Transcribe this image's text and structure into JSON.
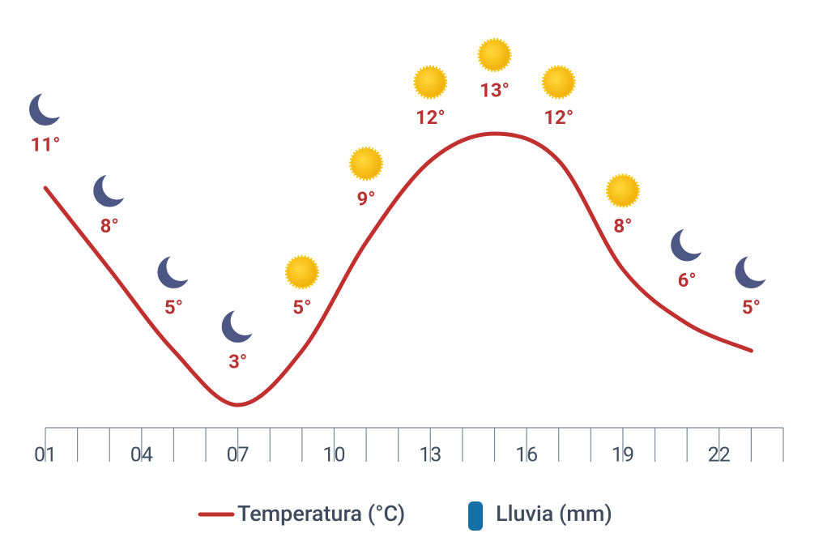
{
  "chart_data": {
    "type": "line",
    "x": [
      1,
      3,
      5,
      7,
      9,
      11,
      13,
      15,
      17,
      19,
      21,
      23
    ],
    "xlim": [
      1,
      24
    ],
    "xticks": [
      {
        "value": 1,
        "label": "01"
      },
      {
        "value": 4,
        "label": "04"
      },
      {
        "value": 7,
        "label": "07"
      },
      {
        "value": 10,
        "label": "10"
      },
      {
        "value": 13,
        "label": "13"
      },
      {
        "value": 16,
        "label": "16"
      },
      {
        "value": 19,
        "label": "19"
      },
      {
        "value": 22,
        "label": "22"
      }
    ],
    "xminor_ticks": [
      2,
      3,
      5,
      6,
      8,
      9,
      11,
      12,
      14,
      15,
      17,
      18,
      20,
      21,
      23,
      24
    ],
    "icons": [
      "moon",
      "moon",
      "moon",
      "moon",
      "sun",
      "sun",
      "sun",
      "sun",
      "sun",
      "sun",
      "moon",
      "moon"
    ],
    "series": [
      {
        "name": "Temperatura (°C)",
        "color": "#c0302f",
        "values": [
          11,
          8,
          5,
          3,
          5,
          9,
          12,
          13,
          12,
          8,
          6,
          5
        ],
        "value_labels": [
          "11°",
          "8°",
          "5°",
          "3°",
          "5°",
          "9°",
          "12°",
          "13°",
          "12°",
          "8°",
          "6°",
          "5°"
        ]
      },
      {
        "name": "Lluvia (mm)",
        "color": "#1570a6",
        "values": [
          0,
          0,
          0,
          0,
          0,
          0,
          0,
          0,
          0,
          0,
          0,
          0
        ]
      }
    ]
  }
}
